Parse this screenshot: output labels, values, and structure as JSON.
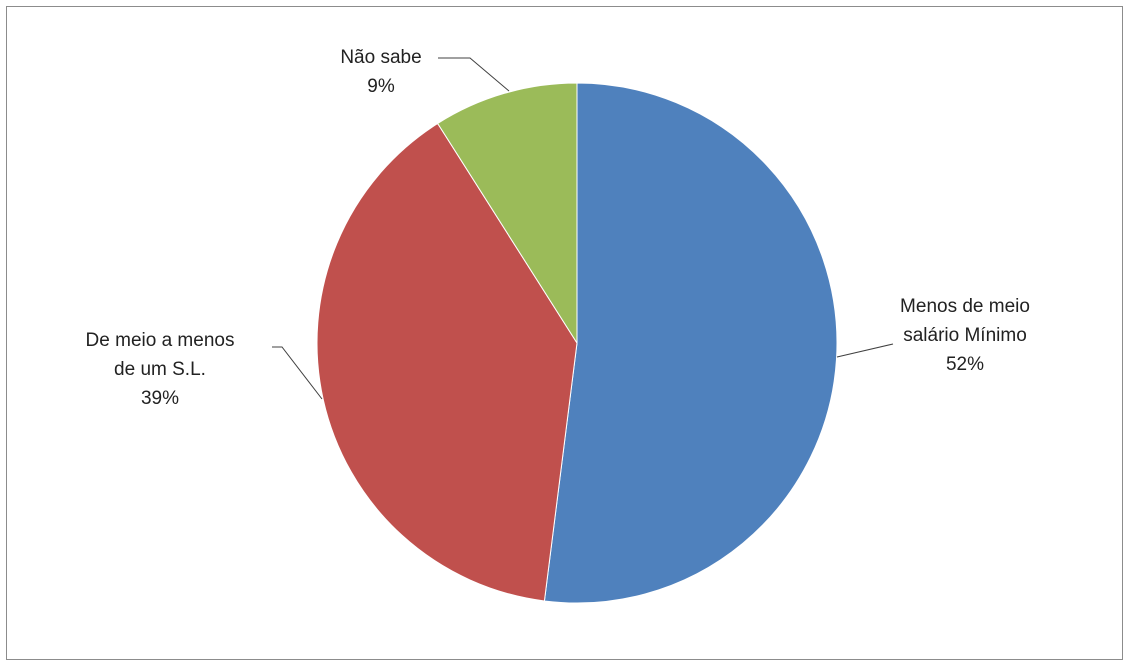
{
  "chart_data": {
    "type": "pie",
    "title": "",
    "slices": [
      {
        "label_lines": [
          "Menos de meio",
          "salário Mínimo"
        ],
        "percent_label": "52%",
        "value": 52,
        "color": "#4f81bd"
      },
      {
        "label_lines": [
          "De meio a menos",
          "de um S.L."
        ],
        "percent_label": "39%",
        "value": 39,
        "color": "#c0504d"
      },
      {
        "label_lines": [
          "Não sabe"
        ],
        "percent_label": "9%",
        "value": 9,
        "color": "#9bbb59"
      }
    ],
    "start_angle_deg": 0,
    "direction": "clockwise",
    "legend": "none"
  }
}
